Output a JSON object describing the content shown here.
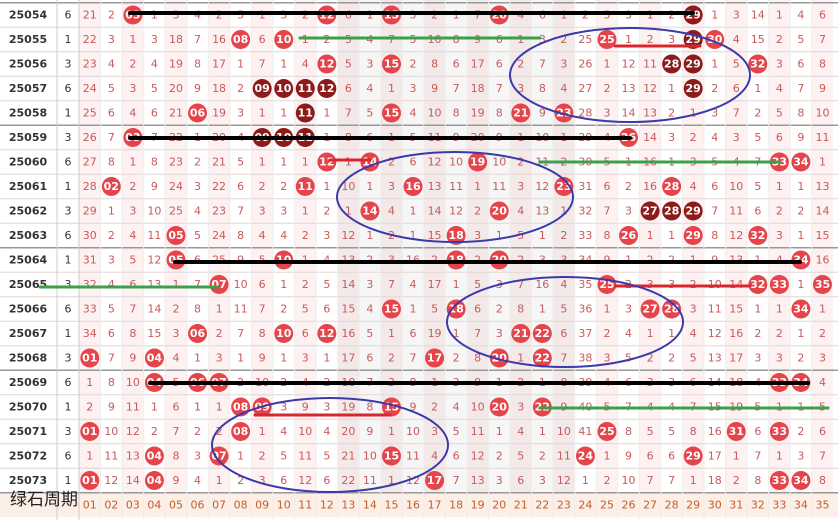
{
  "caption": "绿石周期",
  "footer": [
    "01",
    "02",
    "03",
    "04",
    "05",
    "06",
    "07",
    "08",
    "09",
    "10",
    "11",
    "12",
    "13",
    "14",
    "15",
    "16",
    "17",
    "18",
    "19",
    "20",
    "21",
    "22",
    "23",
    "24",
    "25",
    "26",
    "27",
    "28",
    "29",
    "30",
    "31",
    "32",
    "33",
    "34",
    "35"
  ],
  "rows": [
    {
      "issue": "25054",
      "n": "6",
      "cells": [
        "21",
        "2",
        {
          "ball": "03"
        },
        "1",
        "3",
        "4",
        "2",
        "5",
        "1",
        "3",
        "2",
        {
          "ball": "12"
        },
        "6",
        "1",
        {
          "ball": "15"
        },
        "3",
        "2",
        "1",
        "7",
        {
          "ball": "20"
        },
        "4",
        "6",
        "1",
        "2",
        "5",
        "3",
        "1",
        "2",
        {
          "ball": "29",
          "dark": true
        },
        "1",
        "3",
        "14",
        "1",
        "4",
        "6"
      ]
    },
    {
      "issue": "25055",
      "n": "1",
      "cells": [
        "22",
        "3",
        "1",
        "3",
        "18",
        "7",
        "16",
        {
          "ball": "08"
        },
        "6",
        {
          "ball": "10"
        },
        "1",
        "2",
        "5",
        "4",
        "7",
        "5",
        "10",
        "8",
        "9",
        "6",
        "1",
        "3",
        "2",
        "25",
        {
          "ball": "25"
        },
        "1",
        "2",
        "3",
        {
          "ball": "29",
          "dark": true
        },
        {
          "ball": "30"
        },
        "4",
        "15",
        "2",
        "5",
        "7"
      ]
    },
    {
      "issue": "25056",
      "n": "3",
      "cells": [
        "23",
        "4",
        "2",
        "4",
        "19",
        "8",
        "17",
        "1",
        "7",
        "1",
        "4",
        {
          "ball": "12"
        },
        "5",
        "3",
        {
          "ball": "15"
        },
        "2",
        "8",
        "6",
        "17",
        "6",
        "2",
        "7",
        "3",
        "26",
        "1",
        "12",
        "11",
        {
          "ball": "28",
          "dark": true
        },
        {
          "ball": "29",
          "dark": true
        },
        "1",
        "5",
        {
          "ball": "32"
        },
        "3",
        "6",
        "8"
      ]
    },
    {
      "issue": "25057",
      "n": "6",
      "cells": [
        "24",
        "5",
        "3",
        "5",
        "20",
        "9",
        "18",
        "2",
        {
          "ball": "09",
          "dark": true
        },
        {
          "ball": "10",
          "dark": true
        },
        {
          "ball": "11",
          "dark": true
        },
        {
          "ball": "12",
          "dark": true
        },
        "6",
        "4",
        "1",
        "3",
        "9",
        "7",
        "18",
        "7",
        "3",
        "8",
        "4",
        "27",
        "2",
        "13",
        "12",
        "1",
        {
          "ball": "29",
          "dark": true
        },
        "2",
        "6",
        "1",
        "4",
        "7",
        "9"
      ]
    },
    {
      "issue": "25058",
      "n": "1",
      "cells": [
        "25",
        "6",
        "4",
        "6",
        "21",
        {
          "ball": "06"
        },
        "19",
        "3",
        "1",
        "1",
        {
          "ball": "11",
          "dark": true
        },
        "1",
        "7",
        "5",
        {
          "ball": "15"
        },
        "4",
        "10",
        "8",
        "19",
        "8",
        {
          "ball": "21"
        },
        "9",
        {
          "ball": "23"
        },
        "28",
        "3",
        "14",
        "13",
        "2",
        "1",
        "3",
        "7",
        "2",
        "5",
        "8",
        "10"
      ]
    },
    {
      "issue": "25059",
      "n": "3",
      "cells": [
        "26",
        "7",
        {
          "ball": "03"
        },
        "7",
        "22",
        "1",
        "20",
        "4",
        {
          "ball": "09",
          "dark": true
        },
        {
          "ball": "10",
          "dark": true
        },
        {
          "ball": "11",
          "dark": true
        },
        "1",
        "8",
        "6",
        "1",
        "5",
        "11",
        "9",
        "20",
        "9",
        "1",
        "10",
        "1",
        "29",
        "4",
        {
          "ball": "26"
        },
        "14",
        "3",
        "2",
        "4",
        "3",
        "5",
        "6",
        "9",
        "11"
      ]
    },
    {
      "issue": "25060",
      "n": "6",
      "cells": [
        "27",
        "8",
        "1",
        "8",
        "23",
        "2",
        "21",
        "5",
        "1",
        "1",
        "1",
        {
          "ball": "12"
        },
        "1",
        {
          "ball": "14"
        },
        "2",
        "6",
        "12",
        "10",
        {
          "ball": "19"
        },
        "10",
        "2",
        "11",
        "2",
        "30",
        "5",
        "1",
        "16",
        "1",
        "3",
        "5",
        "4",
        "7",
        {
          "ball": "33"
        },
        {
          "ball": "34"
        },
        "1"
      ]
    },
    {
      "issue": "25061",
      "n": "1",
      "cells": [
        "28",
        {
          "ball": "02"
        },
        "2",
        "9",
        "24",
        "3",
        "22",
        "6",
        "2",
        "2",
        {
          "ball": "11"
        },
        "1",
        "10",
        "1",
        "3",
        {
          "ball": "16"
        },
        "13",
        "11",
        "1",
        "11",
        "3",
        "12",
        {
          "ball": "23"
        },
        "31",
        "6",
        "2",
        "16",
        {
          "ball": "28"
        },
        "4",
        "6",
        "10",
        "5",
        "1",
        "1",
        "13"
      ]
    },
    {
      "issue": "25062",
      "n": "3",
      "cells": [
        "29",
        "1",
        "3",
        "10",
        "25",
        "4",
        "23",
        "7",
        "3",
        "3",
        "1",
        "2",
        "1",
        {
          "ball": "14"
        },
        "4",
        "1",
        "14",
        "12",
        "2",
        {
          "ball": "20"
        },
        "4",
        "13",
        "1",
        "32",
        "7",
        "3",
        {
          "ball": "27",
          "dark": true
        },
        {
          "ball": "28",
          "dark": true
        },
        {
          "ball": "29",
          "dark": true
        },
        "7",
        "11",
        "6",
        "2",
        "2",
        "14"
      ]
    },
    {
      "issue": "25063",
      "n": "6",
      "cells": [
        "30",
        "2",
        "4",
        "11",
        {
          "ball": "05"
        },
        "5",
        "24",
        "8",
        "4",
        "4",
        "2",
        "3",
        "12",
        "1",
        "2",
        "1",
        "15",
        {
          "ball": "18"
        },
        "3",
        "1",
        "5",
        "1",
        "2",
        "33",
        "8",
        {
          "ball": "26"
        },
        "1",
        "1",
        {
          "ball": "29"
        },
        "8",
        "12",
        {
          "ball": "32"
        },
        "3",
        "1",
        "15"
      ]
    },
    {
      "issue": "25064",
      "n": "1",
      "cells": [
        "31",
        "3",
        "5",
        "12",
        {
          "ball": "05"
        },
        "6",
        "25",
        "9",
        "5",
        {
          "ball": "10"
        },
        "1",
        "4",
        "13",
        "2",
        "3",
        "16",
        "2",
        {
          "ball": "18"
        },
        "2",
        {
          "ball": "20"
        },
        "2",
        "3",
        "3",
        "34",
        "9",
        "1",
        "2",
        "2",
        "1",
        "9",
        "13",
        "1",
        "4",
        {
          "ball": "34"
        },
        "16"
      ]
    },
    {
      "issue": "25065",
      "n": "3",
      "cells": [
        "32",
        "4",
        "6",
        "13",
        "1",
        "7",
        {
          "ball": "07"
        },
        "10",
        "6",
        "1",
        "2",
        "5",
        "14",
        "3",
        "7",
        "4",
        "17",
        "1",
        "5",
        "3",
        "7",
        "16",
        "4",
        "35",
        {
          "ball": "25"
        },
        "2",
        "3",
        "3",
        "2",
        "10",
        "14",
        {
          "ball": "32"
        },
        {
          "ball": "33"
        },
        "1",
        {
          "ball": "35"
        }
      ]
    },
    {
      "issue": "25066",
      "n": "6",
      "cells": [
        "33",
        "5",
        "7",
        "14",
        "2",
        "8",
        "1",
        "11",
        "7",
        "2",
        "5",
        "6",
        "15",
        "4",
        {
          "ball": "15"
        },
        "1",
        "5",
        {
          "ball": "18"
        },
        "6",
        "2",
        "8",
        "1",
        "5",
        "36",
        "1",
        "3",
        {
          "ball": "27"
        },
        {
          "ball": "28"
        },
        "3",
        "11",
        "15",
        "1",
        "1",
        {
          "ball": "34"
        },
        "1"
      ]
    },
    {
      "issue": "25067",
      "n": "1",
      "cells": [
        "34",
        "6",
        "8",
        "15",
        "3",
        {
          "ball": "06"
        },
        "2",
        "7",
        "8",
        {
          "ball": "10"
        },
        "6",
        {
          "ball": "12"
        },
        "16",
        "5",
        "1",
        "6",
        "19",
        "1",
        "7",
        "3",
        {
          "ball": "21"
        },
        {
          "ball": "22"
        },
        "6",
        "37",
        "2",
        "4",
        "1",
        "1",
        "4",
        "12",
        "16",
        "2",
        "2",
        "1",
        "2"
      ]
    },
    {
      "issue": "25068",
      "n": "3",
      "cells": [
        {
          "ball": "01"
        },
        "7",
        "9",
        {
          "ball": "04"
        },
        "4",
        "1",
        "3",
        "1",
        "9",
        "1",
        "3",
        "1",
        "17",
        "6",
        "2",
        "7",
        {
          "ball": "17"
        },
        "2",
        "8",
        {
          "ball": "20"
        },
        "1",
        {
          "ball": "22"
        },
        "7",
        "38",
        "3",
        "5",
        "2",
        "2",
        "5",
        "13",
        "17",
        "3",
        "3",
        "2",
        "3"
      ]
    },
    {
      "issue": "25069",
      "n": "6",
      "cells": [
        "1",
        "8",
        "10",
        {
          "ball": "04"
        },
        "5",
        {
          "ball": "06"
        },
        {
          "ball": "07"
        },
        "2",
        "10",
        "2",
        "4",
        "2",
        "18",
        "7",
        "3",
        "8",
        "1",
        "3",
        "9",
        "1",
        "2",
        "1",
        "8",
        "39",
        "4",
        "6",
        "3",
        "3",
        "6",
        "14",
        "18",
        "4",
        {
          "ball": "33"
        },
        {
          "ball": "34"
        },
        "4"
      ]
    },
    {
      "issue": "25070",
      "n": "1",
      "cells": [
        "2",
        "9",
        "11",
        "1",
        "6",
        "1",
        "1",
        {
          "ball": "08"
        },
        {
          "ball": "09"
        },
        "3",
        "9",
        "3",
        "19",
        "8",
        {
          "ball": "15"
        },
        "9",
        "2",
        "4",
        "10",
        {
          "ball": "20"
        },
        "3",
        {
          "ball": "22"
        },
        "9",
        "40",
        "5",
        "7",
        "4",
        "4",
        "7",
        "15",
        "19",
        "5",
        "1",
        "1",
        "5"
      ]
    },
    {
      "issue": "25071",
      "n": "3",
      "cells": [
        {
          "ball": "01"
        },
        "10",
        "12",
        "2",
        "7",
        "2",
        "2",
        {
          "ball": "08"
        },
        "1",
        "4",
        "10",
        "4",
        "20",
        "9",
        "1",
        "10",
        "3",
        "5",
        "11",
        "1",
        "4",
        "1",
        "10",
        "41",
        {
          "ball": "25"
        },
        "8",
        "5",
        "5",
        "8",
        "16",
        {
          "ball": "31"
        },
        "6",
        {
          "ball": "33"
        },
        "2",
        "6"
      ]
    },
    {
      "issue": "25072",
      "n": "6",
      "cells": [
        "1",
        "11",
        "13",
        {
          "ball": "04"
        },
        "8",
        "3",
        {
          "ball": "07"
        },
        "1",
        "2",
        "5",
        "11",
        "5",
        "21",
        "10",
        {
          "ball": "15"
        },
        "11",
        "4",
        "6",
        "12",
        "2",
        "5",
        "2",
        "11",
        {
          "ball": "24"
        },
        "1",
        "9",
        "6",
        "6",
        {
          "ball": "29"
        },
        "17",
        "1",
        "7",
        "1",
        "3",
        "7"
      ]
    },
    {
      "issue": "25073",
      "n": "1",
      "cells": [
        {
          "ball": "01"
        },
        "12",
        "14",
        {
          "ball": "04"
        },
        "9",
        "4",
        "1",
        "2",
        "3",
        "6",
        "12",
        "6",
        "22",
        "11",
        "1",
        "12",
        {
          "ball": "17"
        },
        "7",
        "13",
        "3",
        "6",
        "3",
        "12",
        "1",
        "2",
        "10",
        "7",
        "7",
        "1",
        "18",
        "2",
        "8",
        {
          "ball": "33"
        },
        {
          "ball": "34"
        },
        "8"
      ]
    }
  ]
}
